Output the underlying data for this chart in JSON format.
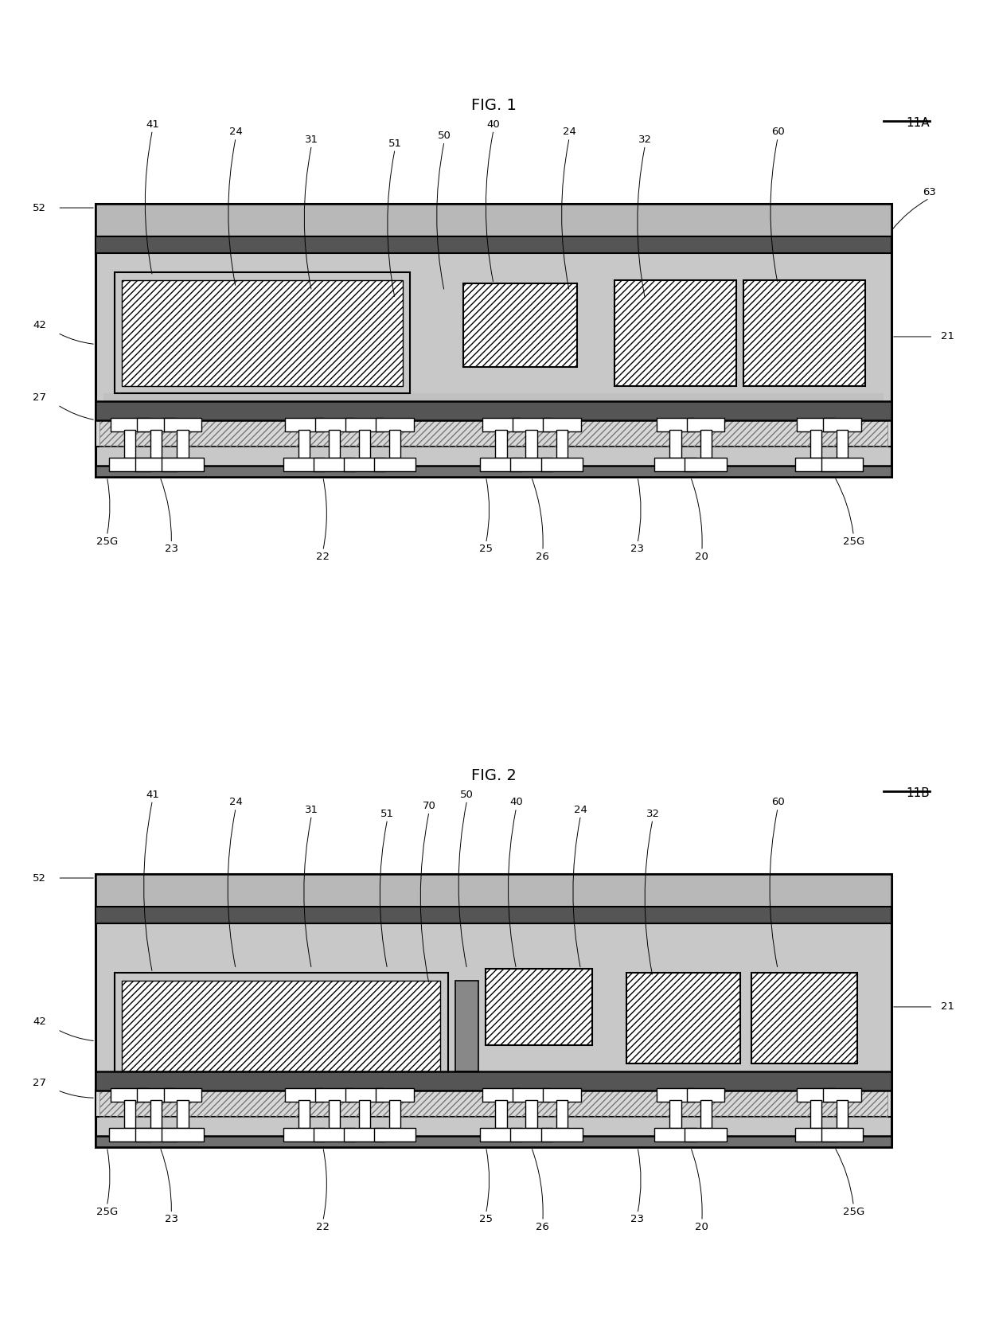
{
  "fig1_title": "FIG. 1",
  "fig2_title": "FIG. 2",
  "fig1_label": "11A",
  "fig2_label": "11B",
  "bg_color": "#ffffff",
  "pkg_fill": "#c8c8c8",
  "top_shield_fill": "#b0b0b0",
  "metal_layer_fill": "#606060",
  "substrate_fill": "#e0e0e0",
  "bottom_fill": "#909090",
  "comp_hatch_fill": "white",
  "line_color": "#000000"
}
